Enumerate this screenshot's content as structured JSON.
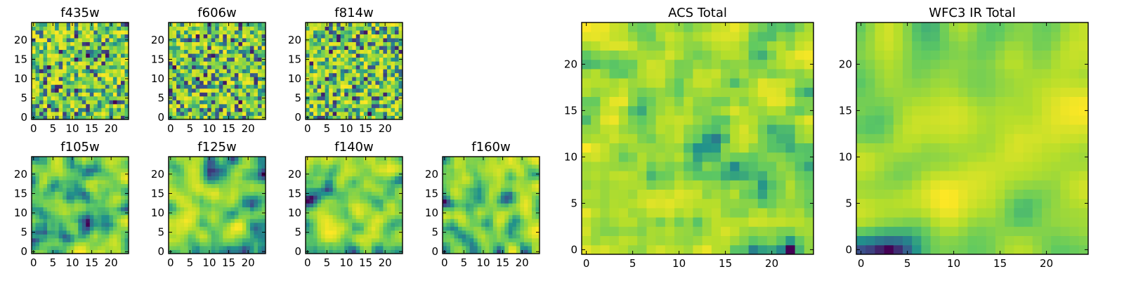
{
  "chart_data": [
    {
      "type": "heatmap",
      "title": "f435w",
      "shape": [
        25,
        25
      ],
      "xlim": [
        0,
        24
      ],
      "ylim": [
        0,
        24
      ],
      "xticks": [
        "0",
        "5",
        "10",
        "15",
        "20"
      ],
      "yticks": [
        "0",
        "5",
        "10",
        "15",
        "20"
      ],
      "colormap": "viridis",
      "seed": 11,
      "smooth": 0
    },
    {
      "type": "heatmap",
      "title": "f606w",
      "shape": [
        25,
        25
      ],
      "xlim": [
        0,
        24
      ],
      "ylim": [
        0,
        24
      ],
      "xticks": [
        "0",
        "5",
        "10",
        "15",
        "20"
      ],
      "yticks": [
        "0",
        "5",
        "10",
        "15",
        "20"
      ],
      "colormap": "viridis",
      "seed": 23,
      "smooth": 0
    },
    {
      "type": "heatmap",
      "title": "f814w",
      "shape": [
        25,
        25
      ],
      "xlim": [
        0,
        24
      ],
      "ylim": [
        0,
        24
      ],
      "xticks": [
        "0",
        "5",
        "10",
        "15",
        "20"
      ],
      "yticks": [
        "0",
        "5",
        "10",
        "15",
        "20"
      ],
      "colormap": "viridis",
      "seed": 37,
      "smooth": 0
    },
    {
      "type": "heatmap",
      "title": "f105w",
      "shape": [
        25,
        25
      ],
      "xlim": [
        0,
        24
      ],
      "ylim": [
        0,
        24
      ],
      "xticks": [
        "0",
        "5",
        "10",
        "15",
        "20"
      ],
      "yticks": [
        "0",
        "5",
        "10",
        "15",
        "20"
      ],
      "colormap": "viridis",
      "seed": 41,
      "smooth": 2
    },
    {
      "type": "heatmap",
      "title": "f125w",
      "shape": [
        25,
        25
      ],
      "xlim": [
        0,
        24
      ],
      "ylim": [
        0,
        24
      ],
      "xticks": [
        "0",
        "5",
        "10",
        "15",
        "20"
      ],
      "yticks": [
        "0",
        "5",
        "10",
        "15",
        "20"
      ],
      "colormap": "viridis",
      "seed": 53,
      "smooth": 2
    },
    {
      "type": "heatmap",
      "title": "f140w",
      "shape": [
        25,
        25
      ],
      "xlim": [
        0,
        24
      ],
      "ylim": [
        0,
        24
      ],
      "xticks": [
        "0",
        "5",
        "10",
        "15",
        "20"
      ],
      "yticks": [
        "0",
        "5",
        "10",
        "15",
        "20"
      ],
      "colormap": "viridis",
      "seed": 67,
      "smooth": 2
    },
    {
      "type": "heatmap",
      "title": "f160w",
      "shape": [
        25,
        25
      ],
      "xlim": [
        0,
        24
      ],
      "ylim": [
        0,
        24
      ],
      "xticks": [
        "0",
        "5",
        "10",
        "15",
        "20"
      ],
      "yticks": [
        "0",
        "5",
        "10",
        "15",
        "20"
      ],
      "colormap": "viridis",
      "seed": 79,
      "smooth": 2
    },
    {
      "type": "heatmap",
      "title": "ACS Total",
      "shape": [
        25,
        25
      ],
      "xlim": [
        0,
        24
      ],
      "ylim": [
        0,
        24
      ],
      "xticks": [
        "0",
        "5",
        "10",
        "15",
        "20"
      ],
      "yticks": [
        "0",
        "5",
        "10",
        "15",
        "20"
      ],
      "colormap": "viridis",
      "seed": 83,
      "smooth": 1
    },
    {
      "type": "heatmap",
      "title": "WFC3 IR Total",
      "shape": [
        25,
        25
      ],
      "xlim": [
        0,
        24
      ],
      "ylim": [
        0,
        24
      ],
      "xticks": [
        "0",
        "5",
        "10",
        "15",
        "20"
      ],
      "yticks": [
        "0",
        "5",
        "10",
        "15",
        "20"
      ],
      "colormap": "viridis",
      "seed": 97,
      "smooth": 3
    }
  ],
  "colors": {
    "background": "#ffffff",
    "viridis_stops": [
      "#440154",
      "#3b528b",
      "#21918c",
      "#5ec962",
      "#b5de2b",
      "#fde725"
    ]
  }
}
